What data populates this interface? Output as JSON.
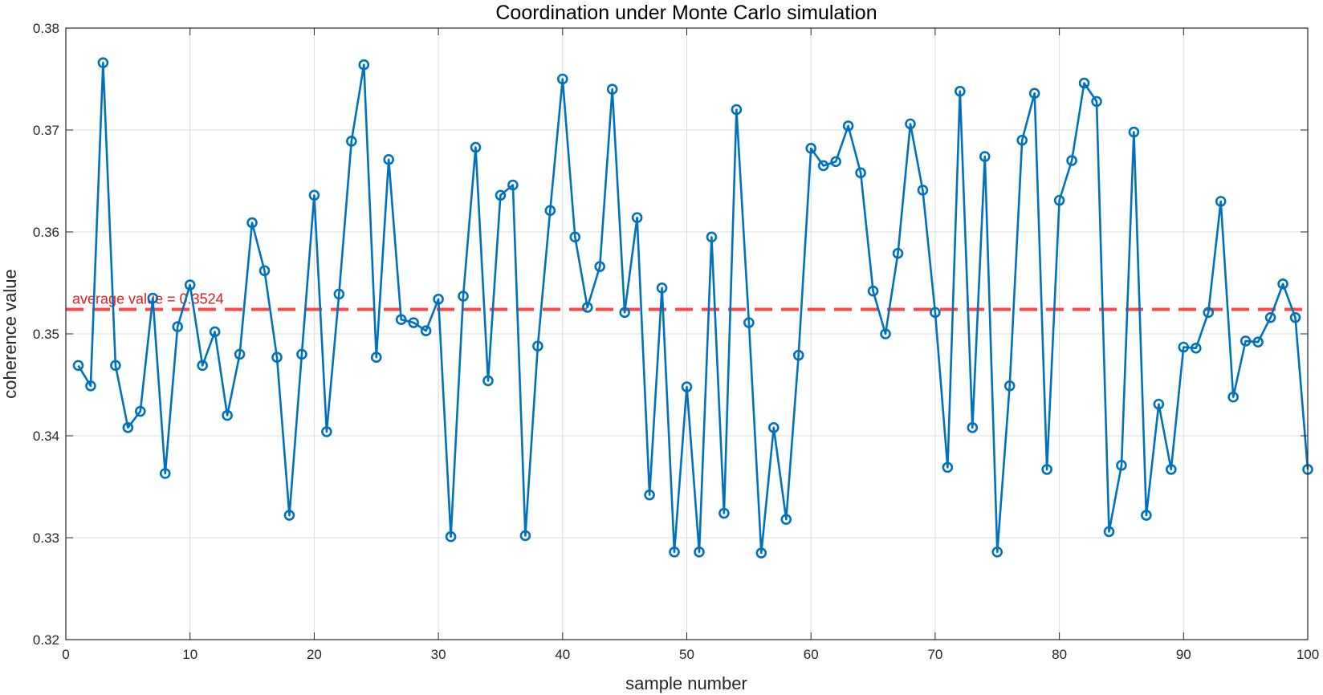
{
  "chart_data": {
    "type": "line",
    "title": "Coordination under Monte Carlo simulation",
    "xlabel": "sample number",
    "ylabel": "coherence value",
    "xlim": [
      0,
      100
    ],
    "ylim": [
      0.32,
      0.38
    ],
    "xticks": [
      0,
      10,
      20,
      30,
      40,
      50,
      60,
      70,
      80,
      90,
      100
    ],
    "yticks": [
      0.32,
      0.33,
      0.34,
      0.35,
      0.36,
      0.37,
      0.38
    ],
    "grid": true,
    "series": [
      {
        "marker": "circle",
        "color": "#0072bd",
        "x": [
          1,
          2,
          3,
          4,
          5,
          6,
          7,
          8,
          9,
          10,
          11,
          12,
          13,
          14,
          15,
          16,
          17,
          18,
          19,
          20,
          21,
          22,
          23,
          24,
          25,
          26,
          27,
          28,
          29,
          30,
          31,
          32,
          33,
          34,
          35,
          36,
          37,
          38,
          39,
          40,
          41,
          42,
          43,
          44,
          45,
          46,
          47,
          48,
          49,
          50,
          51,
          52,
          53,
          54,
          55,
          56,
          57,
          58,
          59,
          60,
          61,
          62,
          63,
          64,
          65,
          66,
          67,
          68,
          69,
          70,
          71,
          72,
          73,
          74,
          75,
          76,
          77,
          78,
          79,
          80,
          81,
          82,
          83,
          84,
          85,
          86,
          87,
          88,
          89,
          90,
          91,
          92,
          93,
          94,
          95,
          96,
          97,
          98,
          99,
          100
        ],
        "y": [
          0.3469,
          0.3449,
          0.3766,
          0.3469,
          0.3408,
          0.3424,
          0.3535,
          0.3363,
          0.3507,
          0.3548,
          0.3469,
          0.3502,
          0.342,
          0.348,
          0.3609,
          0.3562,
          0.3477,
          0.3322,
          0.348,
          0.3636,
          0.3404,
          0.3539,
          0.3689,
          0.3764,
          0.3477,
          0.3671,
          0.3514,
          0.3511,
          0.3503,
          0.3534,
          0.3301,
          0.3537,
          0.3683,
          0.3454,
          0.3636,
          0.3646,
          0.3302,
          0.3488,
          0.3621,
          0.375,
          0.3595,
          0.3526,
          0.3566,
          0.374,
          0.3521,
          0.3614,
          0.3342,
          0.3545,
          0.3286,
          0.3448,
          0.3286,
          0.3595,
          0.3324,
          0.372,
          0.3511,
          0.3285,
          0.3408,
          0.3318,
          0.3479,
          0.3682,
          0.3665,
          0.3669,
          0.3704,
          0.3658,
          0.3542,
          0.35,
          0.3579,
          0.3706,
          0.3641,
          0.3521,
          0.3369,
          0.3738,
          0.3408,
          0.3674,
          0.3286,
          0.3449,
          0.369,
          0.3736,
          0.3367,
          0.3631,
          0.367,
          0.3746,
          0.3728,
          0.3306,
          0.3371,
          0.3698,
          0.3322,
          0.3431,
          0.3367,
          0.3487,
          0.3486,
          0.3521,
          0.363,
          0.3438,
          0.3493,
          0.3492,
          0.3516,
          0.3549,
          0.3516,
          0.3367
        ]
      }
    ],
    "reference_line": {
      "y": 0.3524,
      "color": "#ff4545",
      "style": "dashed",
      "label": "average value = 0.3524",
      "label_color": "#e31a1c"
    }
  }
}
